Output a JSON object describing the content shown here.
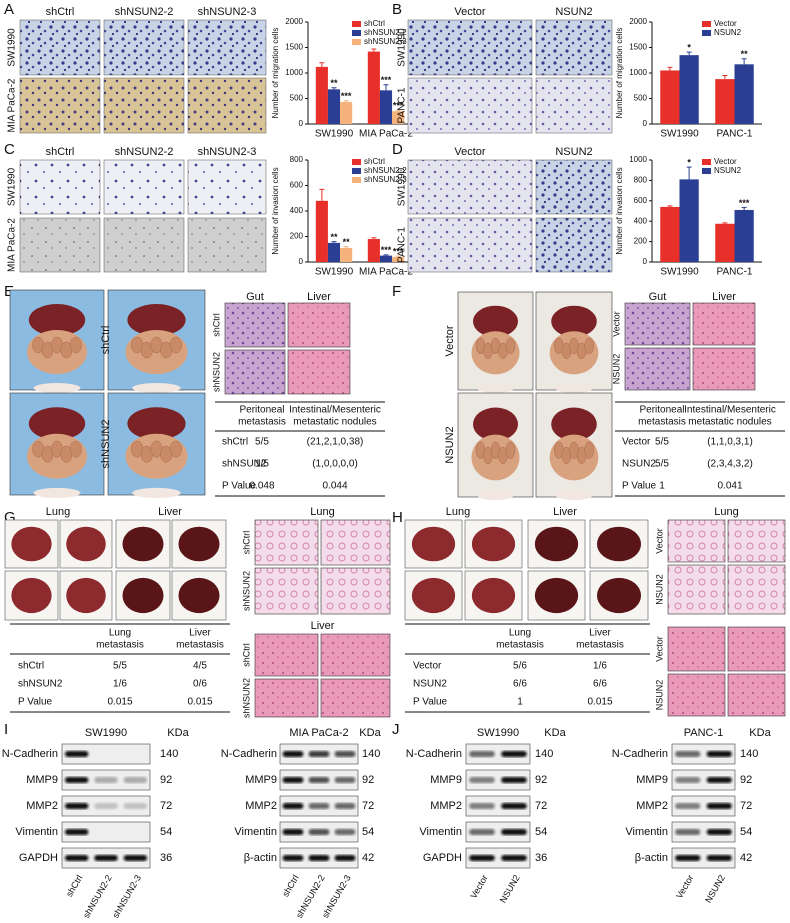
{
  "panel_letters": [
    "A",
    "B",
    "C",
    "D",
    "E",
    "F",
    "G",
    "H",
    "I",
    "J"
  ],
  "chart_data": [
    {
      "type": "bar",
      "ylabel": "Number of migration cells",
      "categories": [
        "SW1990",
        "MIA PaCa-2"
      ],
      "ylim": [
        0,
        2000
      ],
      "yticks": [
        0,
        500,
        1000,
        1500,
        2000
      ],
      "legend": "upper right",
      "series": [
        {
          "name": "shCtrl",
          "color": "#e8302a",
          "values": [
            1120,
            1420
          ],
          "errors": [
            80,
            50
          ]
        },
        {
          "name": "shNSUN2-2",
          "color": "#2a3f93",
          "values": [
            680,
            660
          ],
          "errors": [
            30,
            110
          ],
          "significance": [
            "**",
            "***"
          ]
        },
        {
          "name": "shNSUN2-3",
          "color": "#f5b27a",
          "values": [
            430,
            250
          ],
          "errors": [
            25,
            20
          ],
          "significance": [
            "***",
            "***"
          ]
        }
      ]
    },
    {
      "type": "bar",
      "ylabel": "Number of migration cells",
      "categories": [
        "SW1990",
        "PANC-1"
      ],
      "ylim": [
        0,
        2000
      ],
      "yticks": [
        0,
        500,
        1000,
        1500,
        2000
      ],
      "legend": "upper right",
      "series": [
        {
          "name": "Vector",
          "color": "#e8302a",
          "values": [
            1050,
            880
          ],
          "errors": [
            60,
            70
          ]
        },
        {
          "name": "NSUN2",
          "color": "#2a3f93",
          "values": [
            1350,
            1170
          ],
          "errors": [
            60,
            110
          ],
          "significance": [
            "*",
            "**"
          ]
        }
      ]
    },
    {
      "type": "bar",
      "ylabel": "Number of invasion cells",
      "categories": [
        "SW1990",
        "MIA PaCa-2"
      ],
      "ylim": [
        0,
        800
      ],
      "yticks": [
        0,
        200,
        400,
        600,
        800
      ],
      "legend": "upper right",
      "series": [
        {
          "name": "shCtrl",
          "color": "#e8302a",
          "values": [
            480,
            180
          ],
          "errors": [
            90,
            10
          ]
        },
        {
          "name": "shNSUN2-2",
          "color": "#2a3f93",
          "values": [
            150,
            50
          ],
          "errors": [
            10,
            6
          ],
          "significance": [
            "**",
            "***"
          ]
        },
        {
          "name": "shNSUN2-3",
          "color": "#f5b27a",
          "values": [
            110,
            40
          ],
          "errors": [
            10,
            6
          ],
          "significance": [
            "**",
            "***"
          ]
        }
      ]
    },
    {
      "type": "bar",
      "ylabel": "Number of invasion cells",
      "categories": [
        "SW1990",
        "PANC-1"
      ],
      "ylim": [
        0,
        1000
      ],
      "yticks": [
        0,
        200,
        400,
        600,
        800,
        1000
      ],
      "legend": "upper right",
      "series": [
        {
          "name": "Vector",
          "color": "#e8302a",
          "values": [
            540,
            375
          ],
          "errors": [
            10,
            8
          ]
        },
        {
          "name": "NSUN2",
          "color": "#2a3f93",
          "values": [
            810,
            510
          ],
          "errors": [
            120,
            25
          ],
          "significance": [
            "*",
            "***"
          ]
        }
      ]
    }
  ],
  "migration_images": [
    {
      "columns": [
        "shCtrl",
        "shNSUN2-2",
        "shNSUN2-3"
      ],
      "rows": [
        "SW1990",
        "MIA PaCa-2"
      ]
    },
    {
      "columns": [
        "Vector",
        "NSUN2"
      ],
      "rows": [
        "SW1990",
        "PANC-1"
      ]
    },
    {
      "columns": [
        "shCtrl",
        "shNSUN2-2",
        "shNSUN2-3"
      ],
      "rows": [
        "SW1990",
        "MIA PaCa-2"
      ]
    },
    {
      "columns": [
        "Vector",
        "NSUN2"
      ],
      "rows": [
        "SW1990",
        "PANC-1"
      ]
    }
  ],
  "in_vivo": [
    {
      "photo_rows": [
        "shCtrl",
        "shNSUN2"
      ],
      "histology_columns": [
        "Gut",
        "Liver"
      ],
      "histology_rows": [
        "shCtrl",
        "shNSUN2"
      ],
      "table": {
        "header": [
          [
            "Peritoneal",
            "metastasis"
          ],
          [
            "Intestinal/Mesenteric",
            "metastatic nodules"
          ]
        ],
        "rows": [
          [
            "shCtrl",
            "5/5",
            "(21,2,1,0,38)"
          ],
          [
            "shNSUN2",
            "1/5",
            "(1,0,0,0,0)"
          ],
          [
            "P Value",
            {
              "text": "0.048",
              "color": "#e8302a"
            },
            {
              "text": "0.044",
              "color": "#e8302a"
            }
          ]
        ]
      }
    },
    {
      "photo_rows": [
        "Vector",
        "NSUN2"
      ],
      "histology_columns": [
        "Gut",
        "Liver"
      ],
      "histology_rows": [
        "Vector",
        "NSUN2"
      ],
      "table": {
        "header": [
          [
            "Peritoneal",
            "metastasis"
          ],
          [
            "Intestinal/Mesenteric",
            "metastatic nodules"
          ]
        ],
        "rows": [
          [
            "Vector",
            "5/5",
            "(1,1,0,3,1)"
          ],
          [
            "NSUN2",
            "5/5",
            "(2,3,4,3,2)"
          ],
          [
            "P Value",
            "1",
            {
              "text": "0.041",
              "color": "#e8302a"
            }
          ]
        ]
      }
    }
  ],
  "organ": [
    {
      "photo_columns": [
        "Lung",
        "Liver"
      ],
      "table": {
        "header": [
          [
            "Lung",
            "metastasis"
          ],
          [
            "Liver",
            "metastasis"
          ]
        ],
        "rows": [
          [
            "shCtrl",
            "5/5",
            "4/5"
          ],
          [
            "shNSUN2",
            "1/6",
            "0/6"
          ],
          [
            "P Value",
            {
              "text": "0.015",
              "color": "#e8302a"
            },
            {
              "text": "0.015",
              "color": "#e8302a"
            }
          ]
        ]
      },
      "histology": [
        {
          "title": "Lung",
          "rows": [
            "shCtrl",
            "shNSUN2"
          ]
        },
        {
          "title": "Liver",
          "rows": [
            "shCtrl",
            "shNSUN2"
          ]
        }
      ]
    },
    {
      "photo_columns": [
        "Lung",
        "Liver"
      ],
      "table": {
        "header": [
          [
            "Lung",
            "metastasis"
          ],
          [
            "Liver",
            "metastasis"
          ]
        ],
        "rows": [
          [
            "Vector",
            "5/6",
            "1/6"
          ],
          [
            "NSUN2",
            "6/6",
            "6/6"
          ],
          [
            "P Value",
            "1",
            {
              "text": "0.015",
              "color": "#e8302a"
            }
          ]
        ]
      },
      "histology": [
        {
          "title": "Lung",
          "rows": [
            "Vector",
            "NSUN2"
          ]
        },
        {
          "rows": [
            "Vector",
            "NSUN2"
          ]
        }
      ]
    }
  ],
  "blots": [
    {
      "cell_line": "SW1990",
      "unit": "KDa",
      "proteins": [
        "N-Cadherin",
        "MMP9",
        "MMP2",
        "Vimentin",
        "GAPDH"
      ],
      "sizes": [
        140,
        92,
        72,
        54,
        36
      ],
      "lanes": [
        "shCtrl",
        "shNSUN2-2",
        "shNSUN2-3"
      ]
    },
    {
      "cell_line": "MIA PaCa-2",
      "unit": "KDa",
      "proteins": [
        "N-Cadherin",
        "MMP9",
        "MMP2",
        "Vimentin",
        "β-actin"
      ],
      "sizes": [
        140,
        92,
        72,
        54,
        42
      ],
      "lanes": [
        "shCtrl",
        "shNSUN2-2",
        "shNSUN2-3"
      ]
    },
    {
      "cell_line": "SW1990",
      "unit": "KDa",
      "proteins": [
        "N-Cadherin",
        "MMP9",
        "MMP2",
        "Vimentin",
        "GAPDH"
      ],
      "sizes": [
        140,
        92,
        72,
        54,
        36
      ],
      "lanes": [
        "Vector",
        "NSUN2"
      ]
    },
    {
      "cell_line": "PANC-1",
      "unit": "KDa",
      "proteins": [
        "N-Cadherin",
        "MMP9",
        "MMP2",
        "Vimentin",
        "β-actin"
      ],
      "sizes": [
        140,
        92,
        72,
        54,
        42
      ],
      "lanes": [
        "Vector",
        "NSUN2"
      ]
    }
  ]
}
